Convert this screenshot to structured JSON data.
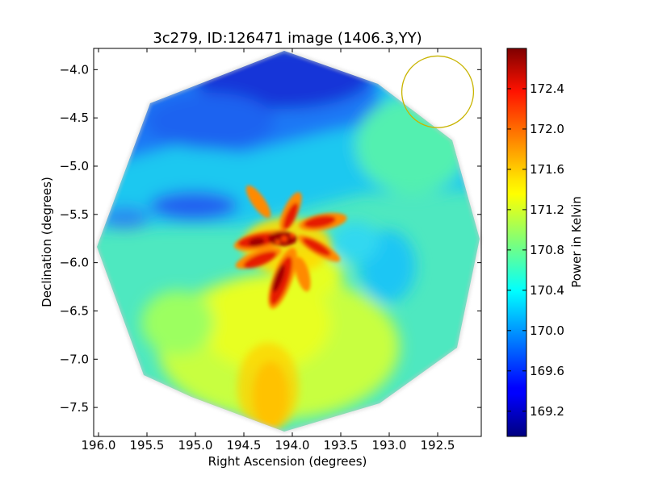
{
  "chart_data": {
    "type": "heatmap",
    "title": "3c279, ID:126471 image (1406.3,YY)",
    "xlabel": "Right Ascension (degrees)",
    "ylabel": "Declination (degrees)",
    "xlim": [
      196.05,
      192.05
    ],
    "ylim": [
      -7.8,
      -3.78
    ],
    "x_ticks": [
      "196.0",
      "195.5",
      "195.0",
      "194.5",
      "194.0",
      "193.5",
      "193.0",
      "192.5"
    ],
    "y_ticks": [
      "−4.0",
      "−4.5",
      "−5.0",
      "−5.5",
      "−6.0",
      "−6.5",
      "−7.0",
      "−7.5"
    ],
    "colorbar": {
      "label": "Power in Kelvin",
      "colormap": "jet",
      "range": [
        168.95,
        172.8
      ],
      "ticks": [
        "169.2",
        "169.6",
        "170.0",
        "170.4",
        "170.8",
        "171.2",
        "171.6",
        "172.0",
        "172.4"
      ]
    },
    "field_shape": "octagon",
    "field_center": [
      194.0,
      -5.8
    ],
    "baseline_value": 170.7,
    "features": [
      {
        "type": "peak",
        "ra": 194.05,
        "dec": -5.88,
        "value": 172.6
      },
      {
        "type": "peak",
        "ra": 194.1,
        "dec": -7.5,
        "value": 172.0
      },
      {
        "type": "low",
        "ra": 194.1,
        "dec": -3.95,
        "value": 169.4
      },
      {
        "type": "low",
        "ra": 195.1,
        "dec": -4.4,
        "value": 169.9
      },
      {
        "type": "low",
        "ra": 195.0,
        "dec": -5.5,
        "value": 169.8
      },
      {
        "type": "low",
        "ra": 193.0,
        "dec": -5.95,
        "value": 170.3
      }
    ],
    "beam_circle": {
      "ra": 192.5,
      "dec": -4.23,
      "radius_deg": 0.37,
      "color": "#c8b400"
    }
  }
}
